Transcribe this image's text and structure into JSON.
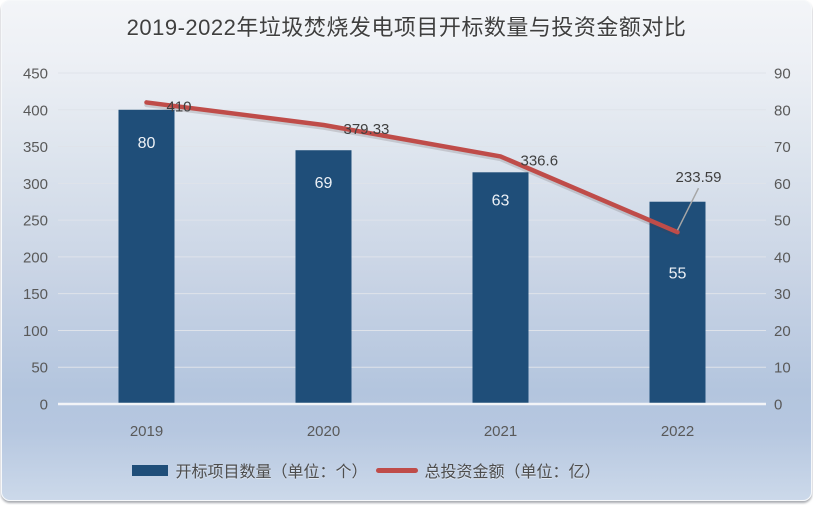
{
  "title": "2019-2022年垃圾焚烧发电项目开标数量与投资金额对比",
  "chart_data": {
    "type": "bar",
    "subtype": "combo-bar-line",
    "title": "2019-2022年垃圾焚烧发电项目开标数量与投资金额对比",
    "categories": [
      "2019",
      "2020",
      "2021",
      "2022"
    ],
    "series": [
      {
        "name": "开标项目数量（单位：个）",
        "type": "bar",
        "axis": "right",
        "values": [
          80,
          69,
          63,
          55
        ],
        "labels": [
          "80",
          "69",
          "63",
          "55"
        ],
        "color": "#1F4E79",
        "label_color": "#EDF1F6"
      },
      {
        "name": "总投资金额（单位：亿）",
        "type": "line",
        "axis": "left",
        "values": [
          410,
          379.33,
          336.6,
          233.59
        ],
        "labels": [
          "410",
          "379.33",
          "336.6",
          "233.59"
        ],
        "color": "#BF4C49",
        "label_color": "#404040",
        "label_positions": [
          "right",
          "right",
          "right",
          "callout-above"
        ]
      }
    ],
    "left_axis": {
      "min": 0,
      "max": 450,
      "step": 50,
      "ticks": [
        "0",
        "50",
        "100",
        "150",
        "200",
        "250",
        "300",
        "350",
        "400",
        "450"
      ]
    },
    "right_axis": {
      "min": 0,
      "max": 90,
      "step": 10,
      "ticks": [
        "0",
        "10",
        "20",
        "30",
        "40",
        "50",
        "60",
        "70",
        "80",
        "90"
      ]
    },
    "grid": true,
    "legend_position": "bottom",
    "bar_label_offsets": [
      38,
      38,
      33,
      77
    ],
    "colors": {
      "grid": "#DFE3EA",
      "zero_line": "#F2F4F7",
      "tick_label": "#595959",
      "category_label": "#595959",
      "leader": "#A6A6A6"
    }
  },
  "legend": {
    "items": [
      {
        "label": "开标项目数量（单位：个）"
      },
      {
        "label": "总投资金额（单位：亿）"
      }
    ]
  }
}
